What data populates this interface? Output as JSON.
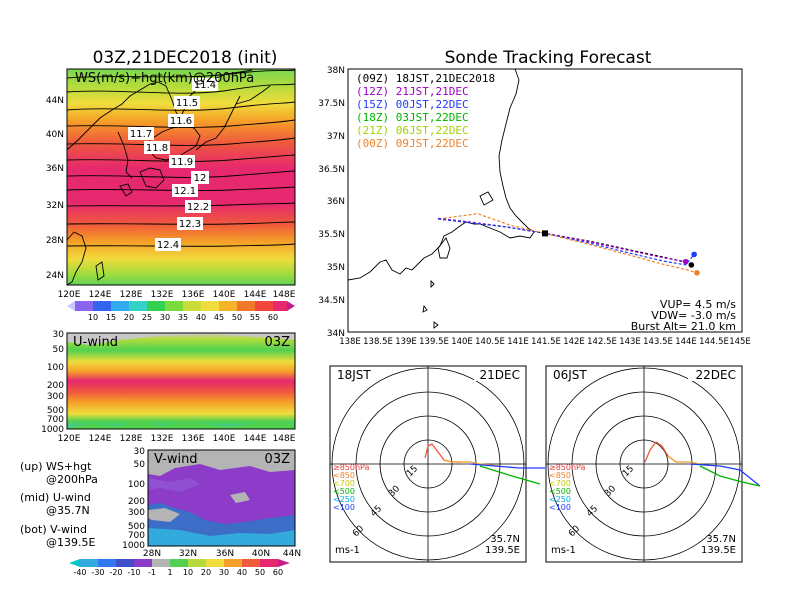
{
  "left_map": {
    "title": "03Z,21DEC2018 (init)",
    "label": "WS(m/s)+hgt(km)@200hPa",
    "lat_ticks": [
      "44N",
      "40N",
      "36N",
      "32N",
      "28N",
      "24N"
    ],
    "lon_ticks": [
      "120E",
      "124E",
      "128E",
      "132E",
      "136E",
      "140E",
      "144E",
      "148E"
    ],
    "contour_labels": [
      "11.4",
      "11.5",
      "11.6",
      "11.7",
      "11.8",
      "11.9",
      "12",
      "12.1",
      "12.2",
      "12.3",
      "12.4"
    ],
    "colorbar": [
      "10",
      "15",
      "20",
      "25",
      "30",
      "35",
      "40",
      "45",
      "50",
      "55",
      "60"
    ]
  },
  "uwind": {
    "label": "U-wind",
    "time": "03Z",
    "p_ticks": [
      "30",
      "50",
      "100",
      "200",
      "300",
      "500",
      "700",
      "1000"
    ],
    "lon_ticks": [
      "120E",
      "124E",
      "128E",
      "132E",
      "136E",
      "140E",
      "144E",
      "148E"
    ]
  },
  "vwind": {
    "label": "V-wind",
    "time": "03Z",
    "p_ticks": [
      "30",
      "50",
      "100",
      "200",
      "300",
      "500",
      "700",
      "1000"
    ],
    "lat_ticks": [
      "28N",
      "32N",
      "36N",
      "40N",
      "44N"
    ],
    "colorbar": [
      "-40",
      "-30",
      "-20",
      "-10",
      "-1",
      "1",
      "10",
      "20",
      "30",
      "40",
      "50",
      "60"
    ]
  },
  "legend_notes": {
    "l1": "(up) WS+hgt",
    "l2": "@200hPa",
    "l3": "(mid) U-wind",
    "l4": "@35.7N",
    "l5": "(bot) V-wind",
    "l6": "@139.5E"
  },
  "tracking": {
    "title": "Sonde Tracking Forecast",
    "lat_ticks": [
      "38N",
      "37.5N",
      "37N",
      "36.5N",
      "36N",
      "35.5N",
      "35N",
      "34.5N",
      "34N"
    ],
    "lon_ticks": [
      "138E",
      "138.5E",
      "139E",
      "139.5E",
      "140E",
      "140.5E",
      "141E",
      "141.5E",
      "142E",
      "142.5E",
      "143E",
      "143.5E",
      "144E",
      "144.5E",
      "145E"
    ],
    "legend": [
      {
        "text": "(09Z) 18JST,21DEC2018",
        "color": "#000000"
      },
      {
        "text": "(12Z) 21JST,21DEC",
        "color": "#a000c8"
      },
      {
        "text": "(15Z) 00JST,22DEC",
        "color": "#1e3cff"
      },
      {
        "text": "(18Z) 03JST,22DEC",
        "color": "#00b400"
      },
      {
        "text": "(21Z) 06JST,22DEC",
        "color": "#a0d200"
      },
      {
        "text": "(00Z) 09JST,22DEC",
        "color": "#f08228"
      }
    ],
    "params": {
      "vup": "VUP= 4.5 m/s",
      "vdw": "VDW= -3.0 m/s",
      "burst": "Burst Alt= 21.0 km"
    },
    "chart_data": {
      "type": "line",
      "xlim": [
        138,
        145
      ],
      "ylim": [
        34,
        38
      ],
      "launch": [
        141.5,
        35.5
      ],
      "series": [
        {
          "name": "(09Z) 18JST,21DEC2018",
          "color": "#000000",
          "x": [
            139.6,
            140.2,
            140.8,
            141.5,
            142.3,
            143.0,
            143.6,
            144.0,
            144.1
          ],
          "y": [
            35.72,
            35.66,
            35.6,
            35.5,
            35.38,
            35.25,
            35.14,
            35.06,
            35.02
          ]
        },
        {
          "name": "(12Z) 21JST,21DEC",
          "color": "#a000c8",
          "x": [
            139.6,
            140.2,
            140.8,
            141.5,
            142.3,
            143.0,
            143.6,
            144.0
          ],
          "y": [
            35.73,
            35.67,
            35.6,
            35.5,
            35.37,
            35.24,
            35.13,
            35.07
          ]
        },
        {
          "name": "(15Z) 00JST,22DEC",
          "color": "#1e3cff",
          "x": [
            139.6,
            140.2,
            140.8,
            141.5,
            142.3,
            143.0,
            143.6,
            144.0,
            144.15
          ],
          "y": [
            35.72,
            35.66,
            35.6,
            35.5,
            35.35,
            35.2,
            35.08,
            35.02,
            35.18
          ]
        },
        {
          "name": "(00Z) 09JST,22DEC",
          "color": "#f08228",
          "x": [
            139.7,
            140.3,
            140.9,
            141.5,
            142.3,
            143.0,
            143.6,
            144.0,
            144.2
          ],
          "y": [
            35.73,
            35.8,
            35.62,
            35.5,
            35.33,
            35.17,
            35.03,
            34.95,
            34.9
          ]
        }
      ]
    }
  },
  "hodo1": {
    "time": "18JST",
    "date": "21DEC",
    "rings": [
      "15",
      "30",
      "45",
      "60"
    ],
    "levels": [
      "≥850hPa",
      "<850",
      "<700",
      "<500",
      "<250",
      "<100"
    ],
    "loc1": "35.7N",
    "loc2": "139.5E",
    "unit": "ms-1"
  },
  "hodo2": {
    "time": "06JST",
    "date": "22DEC",
    "rings": [
      "15",
      "30",
      "45",
      "60"
    ],
    "levels": [
      "≥850hPa",
      "<850",
      "<700",
      "<500",
      "<250",
      "<100"
    ],
    "loc1": "35.7N",
    "loc2": "139.5E",
    "unit": "ms-1"
  }
}
